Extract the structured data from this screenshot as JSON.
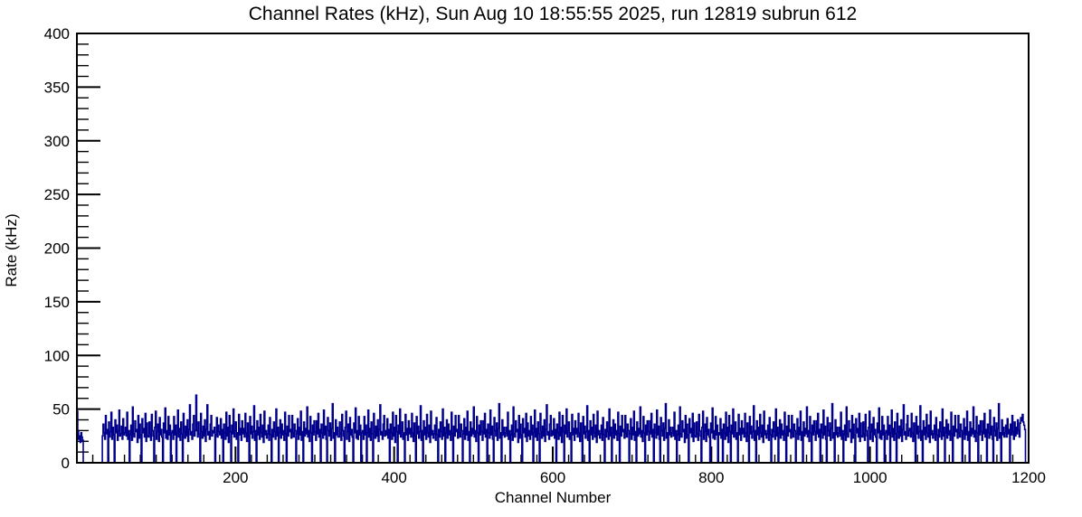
{
  "chart_data": {
    "type": "line",
    "style": "histogram-step",
    "title": "Channel Rates (kHz), Sun Aug 10 18:55:55 2025, run 12819 subrun 612",
    "xlabel": "Channel Number",
    "ylabel": "Rate (kHz)",
    "xlim": [
      0,
      1200
    ],
    "ylim": [
      0,
      400
    ],
    "x_major_ticks": [
      200,
      400,
      600,
      800,
      1000,
      1200
    ],
    "y_major_ticks": [
      0,
      50,
      100,
      150,
      200,
      250,
      300,
      350,
      400
    ],
    "x_minor_step": 20,
    "y_minor_step": 10,
    "grid": "off",
    "legend": "none",
    "line_color": "#00008b",
    "frame_color": "#000000",
    "background_color": "#ffffff",
    "values": [
      48,
      30,
      22,
      25,
      19,
      28,
      24,
      21,
      0,
      0,
      0,
      0,
      0,
      0,
      0,
      0,
      0,
      0,
      0,
      0,
      0,
      0,
      0,
      0,
      0,
      0,
      0,
      0,
      0,
      0,
      0,
      0,
      25,
      36,
      28,
      22,
      44,
      27,
      31,
      0,
      38,
      24,
      29,
      47,
      22,
      33,
      26,
      0,
      40,
      28,
      35,
      21,
      30,
      49,
      25,
      27,
      34,
      22,
      41,
      26,
      28,
      33,
      25,
      47,
      22,
      30,
      0,
      26,
      35,
      21,
      52,
      27,
      24,
      39,
      29,
      31,
      19,
      44,
      23,
      36,
      26,
      0,
      41,
      28,
      32,
      24,
      46,
      20,
      37,
      25,
      24,
      38,
      27,
      21,
      45,
      30,
      25,
      0,
      33,
      48,
      22,
      29,
      36,
      20,
      42,
      26,
      31,
      24,
      0,
      37,
      28,
      51,
      23,
      30,
      22,
      43,
      26,
      35,
      0,
      28,
      30,
      22,
      43,
      26,
      35,
      0,
      28,
      49,
      24,
      32,
      21,
      38,
      27,
      0,
      46,
      29,
      23,
      34,
      25,
      40,
      20,
      31,
      54,
      26,
      29,
      22,
      36,
      44,
      25,
      30,
      63,
      30,
      24,
      38,
      27,
      0,
      46,
      29,
      23,
      34,
      25,
      40,
      20,
      31,
      54,
      26,
      29,
      22,
      36,
      44,
      25,
      30,
      28,
      33,
      0,
      26,
      42,
      24,
      35,
      29,
      26,
      41,
      23,
      31,
      0,
      36,
      28,
      22,
      47,
      25,
      33,
      19,
      44,
      29,
      0,
      35,
      27,
      50,
      24,
      30,
      38,
      22,
      28,
      0,
      45,
      26,
      32,
      21,
      39,
      27,
      32,
      24,
      46,
      28,
      20,
      37,
      25,
      0,
      43,
      27,
      34,
      23,
      29,
      53,
      21,
      30,
      0,
      39,
      26,
      33,
      22,
      45,
      28,
      24,
      35,
      19,
      48,
      26,
      30,
      23,
      27,
      35,
      21,
      42,
      26,
      0,
      31,
      24,
      38,
      29,
      22,
      50,
      25,
      33,
      0,
      28,
      40,
      23,
      36,
      26,
      30,
      21,
      47,
      27,
      0,
      34,
      25,
      44,
      29,
      31,
      23,
      44,
      28,
      24,
      36,
      30,
      0,
      27,
      41,
      22,
      33,
      26,
      48,
      21,
      29,
      0,
      38,
      25,
      32,
      27,
      52,
      24,
      30,
      20,
      43,
      28,
      0,
      35,
      26,
      39,
      29,
      21,
      39,
      27,
      46,
      24,
      31,
      0,
      36,
      28,
      23,
      49,
      26,
      34,
      22,
      0,
      42,
      30,
      25,
      37,
      21,
      32,
      55,
      23,
      28,
      0,
      40,
      26,
      33,
      24,
      24,
      38,
      27,
      21,
      45,
      30,
      25,
      0,
      33,
      48,
      22,
      29,
      36,
      20,
      42,
      26,
      31,
      24,
      0,
      37,
      28,
      51,
      23,
      30,
      22,
      43,
      26,
      35,
      0,
      28,
      30,
      22,
      43,
      26,
      35,
      0,
      28,
      49,
      24,
      32,
      21,
      38,
      27,
      0,
      46,
      29,
      23,
      34,
      25,
      40,
      20,
      31,
      54,
      26,
      29,
      22,
      36,
      44,
      25,
      30,
      26,
      41,
      23,
      31,
      0,
      36,
      28,
      22,
      47,
      25,
      33,
      19,
      44,
      29,
      0,
      35,
      27,
      50,
      24,
      30,
      38,
      22,
      28,
      0,
      45,
      26,
      32,
      21,
      39,
      27,
      32,
      24,
      46,
      28,
      20,
      37,
      25,
      0,
      43,
      27,
      34,
      23,
      29,
      53,
      21,
      30,
      0,
      39,
      26,
      33,
      22,
      45,
      28,
      24,
      35,
      19,
      48,
      26,
      30,
      23,
      27,
      35,
      21,
      42,
      26,
      0,
      31,
      24,
      38,
      29,
      22,
      50,
      25,
      33,
      0,
      28,
      40,
      23,
      36,
      26,
      30,
      21,
      47,
      27,
      0,
      34,
      25,
      44,
      29,
      31,
      23,
      44,
      28,
      24,
      36,
      30,
      0,
      27,
      41,
      22,
      33,
      26,
      48,
      21,
      29,
      0,
      38,
      25,
      32,
      27,
      52,
      24,
      30,
      20,
      43,
      28,
      0,
      35,
      26,
      39,
      29,
      21,
      39,
      27,
      46,
      24,
      31,
      0,
      36,
      28,
      23,
      49,
      26,
      34,
      22,
      0,
      42,
      30,
      25,
      37,
      21,
      32,
      55,
      23,
      28,
      0,
      40,
      26,
      33,
      24,
      28,
      33,
      25,
      47,
      22,
      30,
      0,
      26,
      35,
      21,
      52,
      27,
      24,
      39,
      29,
      31,
      19,
      44,
      23,
      36,
      26,
      0,
      41,
      28,
      32,
      24,
      46,
      20,
      37,
      25,
      30,
      22,
      43,
      26,
      35,
      0,
      28,
      49,
      24,
      32,
      21,
      38,
      27,
      0,
      46,
      29,
      23,
      34,
      25,
      40,
      20,
      31,
      54,
      26,
      29,
      22,
      36,
      44,
      25,
      30,
      26,
      41,
      23,
      31,
      0,
      36,
      28,
      22,
      47,
      25,
      33,
      19,
      44,
      29,
      0,
      35,
      27,
      50,
      24,
      30,
      38,
      22,
      28,
      0,
      45,
      26,
      32,
      21,
      39,
      27,
      32,
      24,
      46,
      28,
      20,
      37,
      25,
      0,
      43,
      27,
      34,
      23,
      29,
      53,
      21,
      30,
      0,
      39,
      26,
      33,
      22,
      45,
      28,
      24,
      35,
      19,
      48,
      26,
      30,
      23,
      27,
      35,
      21,
      42,
      26,
      0,
      31,
      24,
      38,
      29,
      22,
      50,
      25,
      33,
      0,
      28,
      40,
      23,
      36,
      26,
      30,
      21,
      47,
      27,
      0,
      34,
      25,
      44,
      29,
      31,
      23,
      44,
      28,
      24,
      36,
      30,
      0,
      27,
      41,
      22,
      33,
      26,
      48,
      21,
      29,
      0,
      38,
      25,
      32,
      27,
      52,
      24,
      30,
      20,
      43,
      28,
      0,
      35,
      26,
      39,
      29,
      21,
      39,
      27,
      46,
      24,
      31,
      0,
      36,
      28,
      23,
      49,
      26,
      34,
      22,
      0,
      42,
      30,
      25,
      37,
      21,
      32,
      55,
      23,
      28,
      0,
      40,
      26,
      33,
      24,
      28,
      33,
      25,
      47,
      22,
      30,
      0,
      26,
      35,
      21,
      52,
      27,
      24,
      39,
      29,
      31,
      19,
      44,
      23,
      36,
      26,
      0,
      41,
      28,
      32,
      24,
      46,
      20,
      37,
      25,
      24,
      38,
      27,
      21,
      45,
      30,
      25,
      0,
      33,
      48,
      22,
      29,
      36,
      20,
      42,
      26,
      31,
      24,
      0,
      37,
      28,
      51,
      23,
      30,
      22,
      43,
      26,
      35,
      0,
      28,
      26,
      41,
      23,
      31,
      0,
      36,
      28,
      22,
      47,
      25,
      33,
      19,
      44,
      29,
      0,
      35,
      27,
      50,
      24,
      30,
      38,
      22,
      28,
      0,
      45,
      26,
      32,
      21,
      39,
      27,
      32,
      24,
      46,
      28,
      20,
      37,
      25,
      0,
      43,
      27,
      34,
      23,
      29,
      53,
      21,
      30,
      0,
      39,
      26,
      33,
      22,
      45,
      28,
      24,
      35,
      19,
      48,
      26,
      30,
      23,
      27,
      35,
      21,
      42,
      26,
      0,
      31,
      24,
      38,
      29,
      22,
      50,
      25,
      33,
      0,
      28,
      40,
      23,
      36,
      26,
      30,
      21,
      47,
      27,
      0,
      34,
      25,
      44,
      29,
      31,
      23,
      44,
      28,
      24,
      36,
      30,
      0,
      27,
      41,
      22,
      33,
      26,
      48,
      21,
      29,
      0,
      38,
      25,
      32,
      27,
      52,
      24,
      30,
      20,
      43,
      28,
      0,
      35,
      26,
      39,
      29,
      21,
      39,
      27,
      46,
      24,
      31,
      0,
      36,
      28,
      23,
      49,
      26,
      34,
      22,
      0,
      42,
      30,
      25,
      37,
      21,
      32,
      55,
      23,
      28,
      0,
      40,
      26,
      33,
      24,
      28,
      33,
      25,
      47,
      22,
      30,
      0,
      26,
      35,
      21,
      52,
      27,
      24,
      39,
      29,
      31,
      19,
      44,
      23,
      36,
      26,
      0,
      41,
      28,
      32,
      24,
      46,
      20,
      37,
      25,
      24,
      38,
      27,
      21,
      45,
      30,
      25,
      0,
      33,
      48,
      22,
      29,
      36,
      20,
      42,
      26,
      31,
      24,
      0,
      37,
      28,
      51,
      23,
      30,
      22,
      43,
      26,
      35,
      0,
      28,
      30,
      22,
      43,
      26,
      35,
      0,
      28,
      49,
      24,
      32,
      21,
      38,
      27,
      0,
      46,
      29,
      23,
      34,
      25,
      40,
      20,
      31,
      54,
      26,
      29,
      22,
      36,
      44,
      25,
      30,
      32,
      24,
      46,
      28,
      20,
      37,
      25,
      0,
      43,
      27,
      34,
      23,
      29,
      53,
      21,
      30,
      0,
      39,
      26,
      33,
      22,
      45,
      28,
      24,
      35,
      19,
      48,
      26,
      30,
      23,
      27,
      35,
      21,
      42,
      26,
      0,
      31,
      24,
      38,
      29,
      22,
      50,
      25,
      33,
      0,
      28,
      40,
      23,
      36,
      26,
      30,
      21,
      47,
      27,
      0,
      34,
      25,
      44,
      29,
      31,
      23,
      44,
      28,
      24,
      36,
      30,
      0,
      27,
      41,
      22,
      33,
      26,
      48,
      21,
      29,
      0,
      38,
      25,
      32,
      27,
      52,
      24,
      30,
      20,
      43,
      28,
      0,
      35,
      26,
      39,
      29,
      21,
      39,
      27,
      46,
      24,
      31,
      0,
      36,
      28,
      23,
      49,
      26,
      34,
      22,
      0,
      42,
      30,
      25,
      37,
      21,
      32,
      55,
      23,
      28,
      0,
      40,
      26,
      33,
      24,
      28,
      35,
      24,
      41,
      27,
      31,
      0,
      36,
      26,
      44,
      29,
      22,
      38,
      25,
      33,
      27,
      40,
      30,
      24,
      37,
      42,
      39,
      45,
      38,
      35,
      31,
      0,
      0,
      0,
      0
    ]
  }
}
